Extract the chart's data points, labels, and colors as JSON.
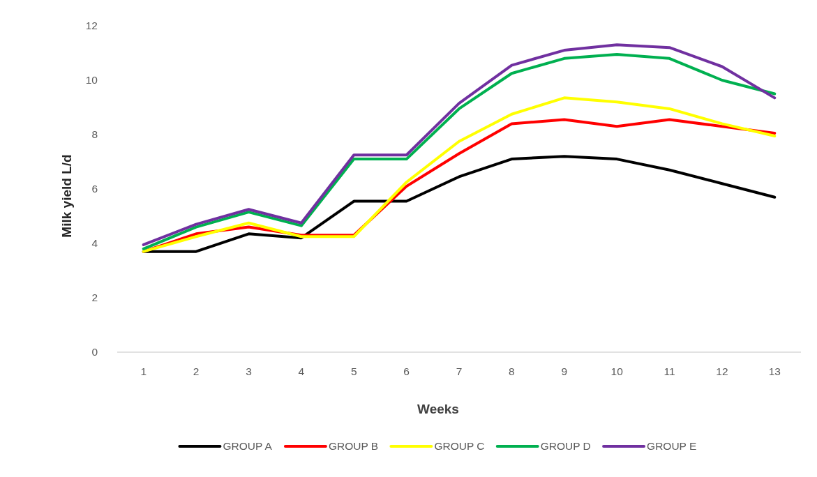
{
  "chart_data": {
    "type": "line",
    "xlabel": "Weeks",
    "ylabel": "Milk yield L/d",
    "categories": [
      "1",
      "2",
      "3",
      "4",
      "5",
      "6",
      "7",
      "8",
      "9",
      "10",
      "11",
      "12",
      "13"
    ],
    "series": [
      {
        "name": "GROUP A",
        "color": "#000000",
        "values": [
          3.7,
          3.7,
          4.35,
          4.2,
          5.55,
          5.55,
          6.45,
          7.1,
          7.2,
          7.1,
          6.7,
          6.2,
          5.7
        ]
      },
      {
        "name": "GROUP B",
        "color": "#ff0000",
        "values": [
          3.7,
          4.35,
          4.6,
          4.3,
          4.3,
          6.1,
          7.3,
          8.4,
          8.55,
          8.3,
          8.55,
          8.3,
          8.05
        ]
      },
      {
        "name": "GROUP C",
        "color": "#ffff00",
        "values": [
          3.7,
          4.25,
          4.75,
          4.25,
          4.25,
          6.25,
          7.75,
          8.75,
          9.35,
          9.2,
          8.95,
          8.4,
          7.95
        ]
      },
      {
        "name": "GROUP D",
        "color": "#00b050",
        "values": [
          3.8,
          4.6,
          5.15,
          4.65,
          7.1,
          7.1,
          8.95,
          10.25,
          10.8,
          10.95,
          10.8,
          10.0,
          9.5
        ]
      },
      {
        "name": "GROUP E",
        "color": "#7030a0",
        "values": [
          3.95,
          4.7,
          5.25,
          4.75,
          7.25,
          7.25,
          9.15,
          10.55,
          11.1,
          11.3,
          11.2,
          10.5,
          9.35
        ]
      }
    ],
    "ylim": [
      0,
      12
    ],
    "yticks": [
      0,
      2,
      4,
      6,
      8,
      10,
      12
    ],
    "legend": "bottom"
  }
}
